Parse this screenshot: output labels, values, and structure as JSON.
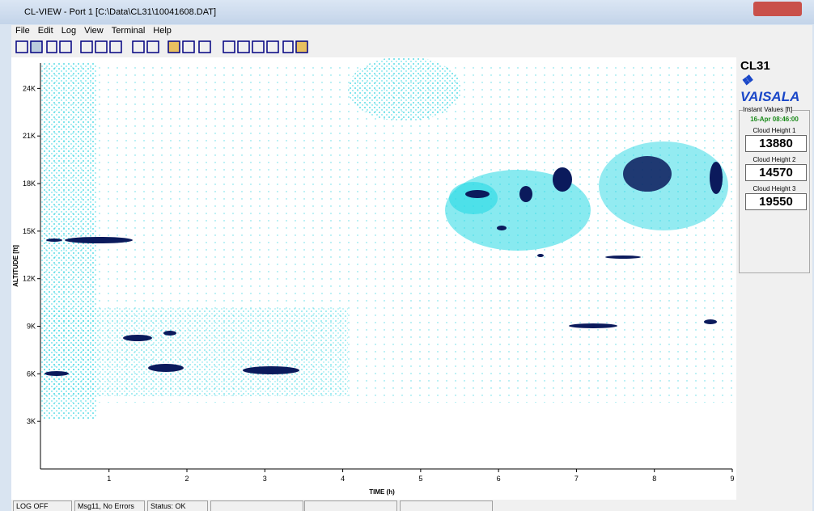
{
  "window": {
    "title": "CL-VIEW - Port 1  [C:\\Data\\CL31\\10041608.DAT]"
  },
  "menu": [
    "File",
    "Edit",
    "Log",
    "View",
    "Terminal",
    "Help"
  ],
  "plot": {
    "y_label": "ALTITUDE [ft]",
    "x_label": "TIME (h)",
    "xlim": [
      0.12,
      9
    ],
    "ylim": [
      0,
      25600
    ],
    "yticks": [
      {
        "value": 3000,
        "label": "3K"
      },
      {
        "value": 6000,
        "label": "6K"
      },
      {
        "value": 9000,
        "label": "9K"
      },
      {
        "value": 12000,
        "label": "12K"
      },
      {
        "value": 15000,
        "label": "15K"
      },
      {
        "value": 18000,
        "label": "18K"
      },
      {
        "value": 21000,
        "label": "21K"
      },
      {
        "value": 24000,
        "label": "24K"
      }
    ],
    "xticks": [
      1,
      2,
      3,
      4,
      5,
      6,
      7,
      8,
      9
    ]
  },
  "side": {
    "model": "CL31",
    "brand": "❖ VAISALA",
    "group_title": "Instant Values [ft]",
    "timestamp": "16-Apr 08:46:00",
    "heights": [
      {
        "label": "Cloud Height 1",
        "value": "13880"
      },
      {
        "label": "Cloud Height 2",
        "value": "14570"
      },
      {
        "label": "Cloud Height 3",
        "value": "19550"
      }
    ]
  },
  "status": [
    "LOG OFF",
    "Msg11, No Errors",
    "Status: OK"
  ]
}
